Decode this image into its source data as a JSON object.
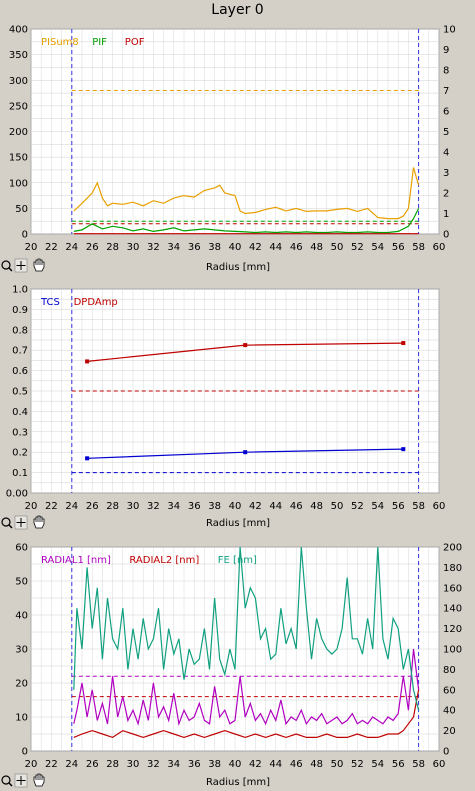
{
  "window": {
    "title": "Layer 0"
  },
  "toolbar": {
    "tools": [
      "zoom-icon",
      "crosshair-icon",
      "pan-hand-icon"
    ]
  },
  "chart_data": [
    {
      "type": "line",
      "xlabel": "Radius [mm]",
      "xlim": [
        20,
        60
      ],
      "x_ticks": [
        20,
        22,
        24,
        26,
        28,
        30,
        32,
        34,
        36,
        38,
        40,
        42,
        44,
        46,
        48,
        50,
        52,
        54,
        56,
        58,
        60
      ],
      "ylim": [
        0,
        400
      ],
      "y_ticks": [
        0,
        50,
        100,
        150,
        200,
        250,
        300,
        350,
        400
      ],
      "ylim_right": [
        0,
        10
      ],
      "y_ticks_right": [
        0,
        1,
        2,
        3,
        4,
        5,
        6,
        7,
        8,
        9,
        10
      ],
      "grid": true,
      "legend": "top-left",
      "vlines_x": [
        24,
        58
      ],
      "series": [
        {
          "name": "PISum8",
          "color": "#e8a000",
          "axis": "left",
          "x": [
            24.2,
            25,
            26,
            26.5,
            27,
            27.5,
            28,
            29,
            30,
            31,
            32,
            33,
            34,
            35,
            36,
            37,
            38,
            38.5,
            39,
            40,
            40.5,
            41,
            42,
            43,
            44,
            45,
            46,
            47,
            48,
            49,
            50,
            51,
            52,
            53,
            54,
            55,
            56,
            56.5,
            57,
            57.5,
            58
          ],
          "y": [
            45,
            60,
            80,
            100,
            70,
            55,
            60,
            58,
            62,
            55,
            65,
            60,
            70,
            75,
            72,
            85,
            90,
            95,
            80,
            75,
            45,
            40,
            42,
            48,
            52,
            45,
            50,
            44,
            45,
            45,
            48,
            50,
            44,
            50,
            32,
            30,
            30,
            35,
            50,
            130,
            95
          ]
        },
        {
          "name": "PIF",
          "color": "#00a000",
          "axis": "left",
          "x": [
            24.2,
            25,
            26,
            27,
            28,
            29,
            30,
            31,
            32,
            33,
            34,
            35,
            36,
            37,
            38,
            39,
            40,
            41,
            42,
            43,
            44,
            45,
            46,
            47,
            48,
            49,
            50,
            51,
            52,
            53,
            54,
            55,
            56,
            57,
            57.5,
            58
          ],
          "y": [
            5,
            8,
            20,
            10,
            15,
            12,
            6,
            10,
            5,
            8,
            12,
            6,
            8,
            10,
            8,
            6,
            5,
            4,
            3,
            4,
            3,
            4,
            3,
            4,
            3,
            3,
            4,
            3,
            3,
            4,
            3,
            3,
            5,
            15,
            30,
            50
          ]
        },
        {
          "name": "POF",
          "color": "#c00000",
          "axis": "left",
          "x": [
            24.2,
            58
          ],
          "y": [
            0.5,
            0.5
          ]
        }
      ],
      "threshold_lines": [
        {
          "value": 280,
          "color": "#e8a000",
          "axis": "left"
        },
        {
          "value": 25,
          "color": "#00a000",
          "axis": "left"
        },
        {
          "value": 20,
          "color": "#c00000",
          "axis": "left"
        }
      ]
    },
    {
      "type": "line",
      "xlabel": "Radius [mm]",
      "xlim": [
        20,
        60
      ],
      "x_ticks": [
        20,
        22,
        24,
        26,
        28,
        30,
        32,
        34,
        36,
        38,
        40,
        42,
        44,
        46,
        48,
        50,
        52,
        54,
        56,
        58,
        60
      ],
      "ylim": [
        0,
        1
      ],
      "y_ticks": [
        0,
        0.1,
        0.2,
        0.3,
        0.4,
        0.5,
        0.6,
        0.7,
        0.8,
        0.9,
        1
      ],
      "y_tick_labels": [
        "0.00",
        "0.1",
        "0.2",
        "0.3",
        "0.4",
        "0.5",
        "0.6",
        "0.7",
        "0.8",
        "0.9",
        "1.0"
      ],
      "grid": true,
      "legend": "top-left",
      "vlines_x": [
        24,
        58
      ],
      "series": [
        {
          "name": "TCS",
          "color": "#0000d0",
          "axis": "left",
          "x": [
            25.5,
            41,
            56.5
          ],
          "y": [
            0.17,
            0.2,
            0.215
          ]
        },
        {
          "name": "DPDAmp",
          "color": "#c00000",
          "axis": "left",
          "x": [
            25.5,
            41,
            56.5
          ],
          "y": [
            0.645,
            0.725,
            0.735
          ]
        }
      ],
      "threshold_lines": [
        {
          "value": 0.5,
          "color": "#c00000",
          "axis": "left"
        },
        {
          "value": 0.1,
          "color": "#0000d0",
          "axis": "left"
        }
      ]
    },
    {
      "type": "line",
      "xlabel": "Radius [mm]",
      "xlim": [
        20,
        60
      ],
      "x_ticks": [
        20,
        22,
        24,
        26,
        28,
        30,
        32,
        34,
        36,
        38,
        40,
        42,
        44,
        46,
        48,
        50,
        52,
        54,
        56,
        58,
        60
      ],
      "ylim": [
        0,
        60
      ],
      "y_ticks": [
        0,
        10,
        20,
        30,
        40,
        50,
        60
      ],
      "ylim_right": [
        0,
        200
      ],
      "y_ticks_right": [
        0,
        20,
        40,
        60,
        80,
        100,
        120,
        140,
        160,
        180,
        200
      ],
      "grid": true,
      "legend": "top-left",
      "vlines_x": [
        24,
        58
      ],
      "series": [
        {
          "name": "RADIAL1 [nm]",
          "color": "#b000c0",
          "axis": "left",
          "x": [
            24.2,
            24.5,
            25,
            25.5,
            26,
            26.5,
            27,
            27.5,
            28,
            28.5,
            29,
            29.5,
            30,
            30.5,
            31,
            31.5,
            32,
            32.5,
            33,
            33.5,
            34,
            34.5,
            35,
            35.5,
            36,
            36.5,
            37,
            37.5,
            38,
            38.5,
            39,
            39.5,
            40,
            40.5,
            41,
            41.5,
            42,
            42.5,
            43,
            43.5,
            44,
            44.5,
            45,
            45.5,
            46,
            46.5,
            47,
            47.5,
            48,
            48.5,
            49,
            49.5,
            50,
            50.5,
            51,
            51.5,
            52,
            52.5,
            53,
            53.5,
            54,
            54.5,
            55,
            55.5,
            56,
            56.5,
            57,
            57.5,
            58
          ],
          "y": [
            8,
            12,
            20,
            10,
            18,
            9,
            14,
            8,
            22,
            10,
            16,
            9,
            12,
            8,
            15,
            9,
            20,
            10,
            13,
            9,
            17,
            8,
            12,
            9,
            10,
            14,
            9,
            8,
            19,
            10,
            12,
            8,
            9,
            22,
            10,
            14,
            9,
            11,
            8,
            12,
            9,
            15,
            8,
            10,
            9,
            12,
            8,
            10,
            9,
            11,
            8,
            9,
            10,
            8,
            9,
            11,
            8,
            9,
            8,
            10,
            9,
            8,
            10,
            9,
            11,
            22,
            12,
            30,
            18
          ]
        },
        {
          "name": "RADIAL2 [nm]",
          "color": "#c00000",
          "axis": "left",
          "x": [
            24.2,
            25,
            26,
            27,
            28,
            29,
            30,
            31,
            32,
            33,
            34,
            35,
            36,
            37,
            38,
            39,
            40,
            41,
            42,
            43,
            44,
            45,
            46,
            47,
            48,
            49,
            50,
            51,
            52,
            53,
            54,
            55,
            56,
            56.5,
            57,
            57.5,
            58
          ],
          "y": [
            4,
            5,
            6,
            5,
            4,
            6,
            5,
            4,
            5,
            6,
            5,
            4,
            5,
            4,
            5,
            6,
            5,
            4,
            5,
            4,
            5,
            4,
            5,
            4,
            4,
            5,
            4,
            4,
            5,
            4,
            4,
            5,
            5,
            6,
            8,
            10,
            18
          ]
        },
        {
          "name": "FE [nm]",
          "color": "#10a080",
          "axis": "right",
          "x": [
            24.2,
            24.5,
            25,
            25.5,
            26,
            26.5,
            27,
            27.5,
            28,
            28.5,
            29,
            29.5,
            30,
            30.5,
            31,
            31.5,
            32,
            32.5,
            33,
            33.5,
            34,
            34.5,
            35,
            35.5,
            36,
            36.5,
            37,
            37.5,
            38,
            38.5,
            39,
            39.5,
            40,
            40.5,
            41,
            41.5,
            42,
            42.5,
            43,
            43.5,
            44,
            44.5,
            45,
            45.5,
            46,
            46.5,
            47,
            47.5,
            48,
            48.5,
            49,
            49.5,
            50,
            50.5,
            51,
            51.5,
            52,
            52.5,
            53,
            53.5,
            54,
            54.5,
            55,
            55.5,
            56,
            56.5,
            57,
            57.5,
            58
          ],
          "y": [
            60,
            140,
            100,
            180,
            120,
            160,
            90,
            150,
            110,
            100,
            140,
            80,
            120,
            90,
            130,
            100,
            110,
            140,
            80,
            120,
            95,
            110,
            70,
            100,
            85,
            90,
            120,
            80,
            150,
            90,
            75,
            100,
            80,
            200,
            140,
            160,
            150,
            110,
            120,
            90,
            95,
            140,
            105,
            120,
            100,
            200,
            140,
            90,
            130,
            110,
            100,
            95,
            100,
            120,
            170,
            110,
            110,
            95,
            130,
            100,
            200,
            110,
            90,
            130,
            120,
            80,
            100,
            60,
            40
          ]
        }
      ],
      "threshold_lines": [
        {
          "value": 22,
          "color": "#b000c0",
          "axis": "left"
        },
        {
          "value": 16,
          "color": "#c00000",
          "axis": "left"
        }
      ]
    }
  ]
}
